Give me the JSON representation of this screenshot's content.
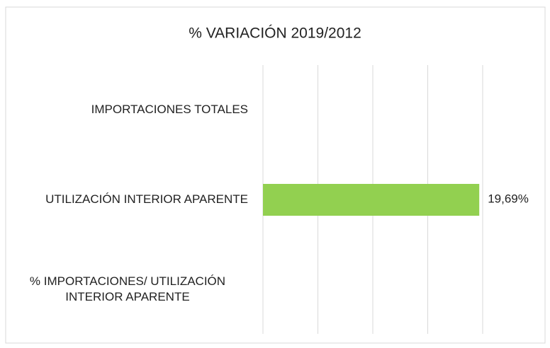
{
  "chart_data": {
    "type": "barh",
    "title": "% VARIACIÓN 2019/2012",
    "categories": [
      "IMPORTACIONES TOTALES",
      "UTILIZACIÓN INTERIOR APARENTE",
      "% IMPORTACIONES/ UTILIZACIÓN INTERIOR APARENTE"
    ],
    "values": [
      null,
      19.69,
      null
    ],
    "value_labels": [
      null,
      "19,69%",
      null
    ],
    "color": "#92d050",
    "xlim": [
      0,
      20
    ],
    "xticks": [
      0,
      5,
      10,
      15,
      20
    ],
    "grid": true
  }
}
